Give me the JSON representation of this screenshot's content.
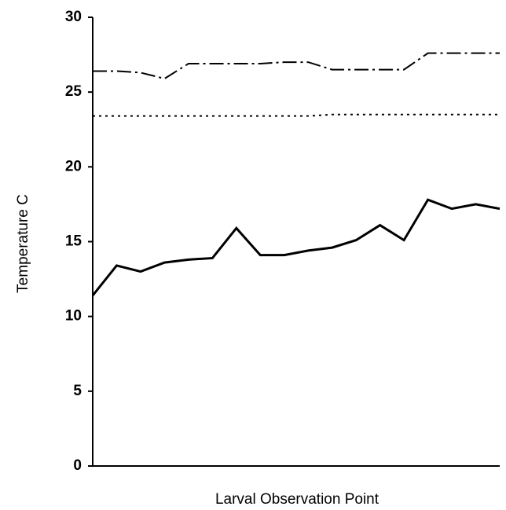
{
  "chart_data": {
    "type": "line",
    "ylabel": "Temperature C",
    "xlabel": "Larval Observation Point",
    "categories": [
      null,
      null,
      null,
      null,
      null,
      null,
      null,
      null,
      null,
      null,
      null,
      null,
      null,
      null,
      null,
      null,
      null,
      null
    ],
    "series": [
      {
        "color": "#000000",
        "dash": "solid",
        "width": 3,
        "values": [
          11.4,
          13.4,
          13.0,
          13.6,
          13.8,
          13.9,
          15.9,
          14.1,
          14.1,
          14.4,
          14.6,
          15.1,
          16.1,
          15.1,
          17.8,
          17.2,
          17.5,
          17.2
        ]
      },
      {
        "color": "#000000",
        "dash": "dashdot",
        "width": 2,
        "values": [
          26.4,
          26.4,
          26.3,
          25.9,
          26.9,
          26.9,
          26.9,
          26.9,
          27.0,
          27.0,
          26.5,
          26.5,
          26.5,
          26.5,
          27.6,
          27.6,
          27.6,
          27.6
        ]
      },
      {
        "color": "#000000",
        "dash": "dotted",
        "width": 2,
        "values": [
          23.4,
          23.4,
          23.4,
          23.4,
          23.4,
          23.4,
          23.4,
          23.4,
          23.4,
          23.4,
          23.5,
          23.5,
          23.5,
          23.5,
          23.5,
          23.5,
          23.5,
          23.5
        ]
      }
    ],
    "ylim": [
      0,
      30
    ],
    "yticks": [
      0,
      5,
      10,
      15,
      20,
      25,
      30
    ],
    "grid": false
  }
}
